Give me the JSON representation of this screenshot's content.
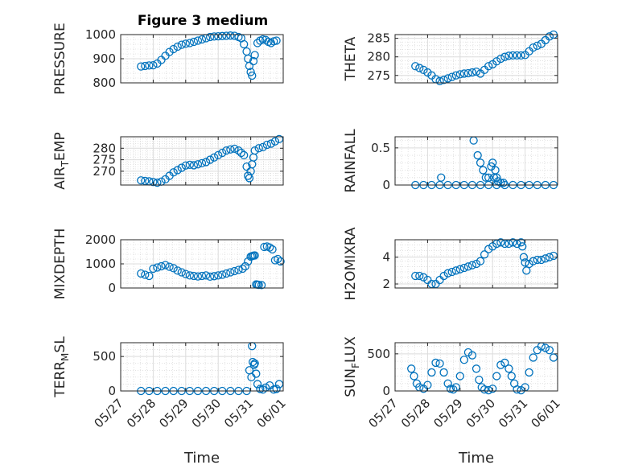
{
  "title": "Figure 3 medium",
  "chart_data": [
    {
      "type": "scatter",
      "ylabel": "PRESSURE",
      "ylim": [
        800,
        1000
      ],
      "yticks": [
        800,
        900,
        1000
      ],
      "xlabel": "",
      "marker_color": "#0072BD",
      "x": [
        "05/27 15:00",
        "05/27 18:00",
        "05/27 21:00",
        "05/28 00:00",
        "05/28 03:00",
        "05/28 06:00",
        "05/28 09:00",
        "05/28 12:00",
        "05/28 15:00",
        "05/28 18:00",
        "05/28 21:00",
        "05/29 00:00",
        "05/29 03:00",
        "05/29 06:00",
        "05/29 09:00",
        "05/29 12:00",
        "05/29 15:00",
        "05/29 18:00",
        "05/29 21:00",
        "05/30 00:00",
        "05/30 03:00",
        "05/30 06:00",
        "05/30 09:00",
        "05/30 12:00",
        "05/30 15:00",
        "05/30 17:00",
        "05/30 19:00",
        "05/30 21:00",
        "05/30 22:00",
        "05/30 23:00",
        "05/31 00:00",
        "05/31 01:00",
        "05/31 02:00",
        "05/31 03:00",
        "05/31 05:00",
        "05/31 07:00",
        "05/31 09:00",
        "05/31 11:00",
        "05/31 13:00",
        "05/31 15:00",
        "05/31 17:00",
        "05/31 19:00"
      ],
      "y": [
        868,
        870,
        872,
        873,
        880,
        895,
        912,
        928,
        940,
        950,
        958,
        962,
        965,
        970,
        975,
        980,
        985,
        990,
        992,
        993,
        994,
        995,
        996,
        995,
        990,
        985,
        960,
        930,
        900,
        870,
        845,
        830,
        890,
        915,
        965,
        975,
        980,
        978,
        970,
        965,
        972,
        975
      ]
    },
    {
      "type": "scatter",
      "ylabel": "THETA",
      "ylim": [
        273,
        286
      ],
      "yticks": [
        275,
        280,
        285
      ],
      "xlabel": "",
      "marker_color": "#0072BD",
      "x": [
        "05/27 15:00",
        "05/27 18:00",
        "05/27 21:00",
        "05/28 00:00",
        "05/28 03:00",
        "05/28 06:00",
        "05/28 09:00",
        "05/28 12:00",
        "05/28 15:00",
        "05/28 18:00",
        "05/28 21:00",
        "05/29 00:00",
        "05/29 03:00",
        "05/29 06:00",
        "05/29 09:00",
        "05/29 12:00",
        "05/29 15:00",
        "05/29 18:00",
        "05/29 21:00",
        "05/30 00:00",
        "05/30 03:00",
        "05/30 06:00",
        "05/30 09:00",
        "05/30 12:00",
        "05/30 15:00",
        "05/30 18:00",
        "05/30 21:00",
        "05/31 00:00",
        "05/31 03:00",
        "05/31 06:00",
        "05/31 09:00",
        "05/31 12:00",
        "05/31 15:00",
        "05/31 18:00",
        "05/31 21:00"
      ],
      "y": [
        277.5,
        277.0,
        276.5,
        275.8,
        275.0,
        274.0,
        273.5,
        273.8,
        274.2,
        274.6,
        275.0,
        275.3,
        275.5,
        275.6,
        275.8,
        276.0,
        275.5,
        276.5,
        277.5,
        278.0,
        278.8,
        279.5,
        280.0,
        280.3,
        280.4,
        280.4,
        280.4,
        280.5,
        281.5,
        282.5,
        283.0,
        283.5,
        284.5,
        285.5,
        286.0
      ]
    },
    {
      "type": "scatter",
      "ylabel": "AIR_TEMP",
      "ylim": [
        264,
        285
      ],
      "yticks": [
        270,
        275,
        280
      ],
      "xlabel": "",
      "marker_color": "#0072BD",
      "x": [
        "05/27 15:00",
        "05/27 18:00",
        "05/27 21:00",
        "05/28 00:00",
        "05/28 03:00",
        "05/28 06:00",
        "05/28 09:00",
        "05/28 12:00",
        "05/28 15:00",
        "05/28 18:00",
        "05/28 21:00",
        "05/29 00:00",
        "05/29 03:00",
        "05/29 06:00",
        "05/29 09:00",
        "05/29 12:00",
        "05/29 15:00",
        "05/29 18:00",
        "05/29 21:00",
        "05/30 00:00",
        "05/30 03:00",
        "05/30 06:00",
        "05/30 09:00",
        "05/30 12:00",
        "05/30 15:00",
        "05/30 17:00",
        "05/30 19:00",
        "05/30 21:00",
        "05/30 22:00",
        "05/30 23:00",
        "05/31 00:00",
        "05/31 01:00",
        "05/31 02:00",
        "05/31 03:00",
        "05/31 06:00",
        "05/31 09:00",
        "05/31 12:00",
        "05/31 15:00",
        "05/31 18:00",
        "05/31 21:00"
      ],
      "y": [
        266.0,
        265.8,
        265.6,
        265.3,
        265.0,
        265.5,
        266.5,
        268.0,
        269.5,
        270.5,
        271.5,
        272.5,
        272.8,
        272.6,
        273.0,
        273.5,
        274.0,
        275.0,
        276.0,
        277.0,
        278.0,
        279.0,
        279.5,
        279.8,
        279.0,
        278.0,
        277.0,
        272.0,
        268.0,
        267.0,
        270.0,
        273.0,
        276.0,
        279.0,
        280.0,
        280.5,
        281.5,
        282.0,
        283.0,
        284.0
      ]
    },
    {
      "type": "scatter",
      "ylabel": "RAINFALL",
      "ylim": [
        0,
        0.65
      ],
      "yticks": [
        0,
        0.5
      ],
      "ytick_labels": [
        "0",
        "0.5"
      ],
      "xlabel": "",
      "marker_color": "#0072BD",
      "x": [
        "05/27 15:00",
        "05/27 21:00",
        "05/28 03:00",
        "05/28 09:00",
        "05/28 15:00",
        "05/28 21:00",
        "05/29 03:00",
        "05/29 09:00",
        "05/29 15:00",
        "05/29 21:00",
        "05/30 03:00",
        "05/30 09:00",
        "05/30 15:00",
        "05/30 21:00",
        "05/31 03:00",
        "05/31 09:00",
        "05/31 15:00",
        "05/31 21:00",
        "05/28 10:00",
        "05/29 10:00",
        "05/29 13:00",
        "05/29 15:00",
        "05/29 17:00",
        "05/29 19:00",
        "05/29 21:00",
        "05/29 23:00",
        "05/30 00:00",
        "05/30 01:00",
        "05/30 02:00",
        "05/30 03:00",
        "05/30 04:00",
        "05/30 06:00",
        "05/30 08:00"
      ],
      "y": [
        0,
        0,
        0,
        0,
        0,
        0,
        0,
        0,
        0,
        0,
        0,
        0,
        0,
        0,
        0,
        0,
        0,
        0,
        0.1,
        0.6,
        0.4,
        0.3,
        0.2,
        0.1,
        0.1,
        0.25,
        0.3,
        0.1,
        0.2,
        0.1,
        0.05,
        0.03,
        0.03
      ]
    },
    {
      "type": "scatter",
      "ylabel": "MIXDEPTH",
      "ylim": [
        0,
        2000
      ],
      "yticks": [
        0,
        1000,
        2000
      ],
      "xlabel": "",
      "marker_color": "#0072BD",
      "x": [
        "05/27 15:00",
        "05/27 18:00",
        "05/27 21:00",
        "05/28 00:00",
        "05/28 03:00",
        "05/28 06:00",
        "05/28 09:00",
        "05/28 12:00",
        "05/28 15:00",
        "05/28 18:00",
        "05/28 21:00",
        "05/29 00:00",
        "05/29 03:00",
        "05/29 06:00",
        "05/29 09:00",
        "05/29 12:00",
        "05/29 15:00",
        "05/29 18:00",
        "05/29 21:00",
        "05/30 00:00",
        "05/30 03:00",
        "05/30 06:00",
        "05/30 09:00",
        "05/30 12:00",
        "05/30 15:00",
        "05/30 18:00",
        "05/30 20:00",
        "05/30 22:00",
        "05/31 00:00",
        "05/31 01:00",
        "05/31 02:00",
        "05/31 03:00",
        "05/31 04:00",
        "05/31 05:00",
        "05/31 06:00",
        "05/31 08:00",
        "05/31 10:00",
        "05/31 12:00",
        "05/31 14:00",
        "05/31 16:00",
        "05/31 18:00",
        "05/31 20:00",
        "05/31 22:00"
      ],
      "y": [
        600,
        550,
        500,
        800,
        850,
        900,
        950,
        880,
        820,
        720,
        650,
        580,
        520,
        500,
        480,
        500,
        520,
        470,
        490,
        520,
        550,
        600,
        650,
        700,
        750,
        800,
        900,
        1100,
        1300,
        1320,
        1340,
        1350,
        150,
        140,
        130,
        120,
        1700,
        1720,
        1680,
        1600,
        1150,
        1200,
        1100
      ]
    },
    {
      "type": "scatter",
      "ylabel": "H2OMIXRA",
      "ylim": [
        1.7,
        5.3
      ],
      "yticks": [
        2,
        4
      ],
      "xlabel": "",
      "marker_color": "#0072BD",
      "x": [
        "05/27 15:00",
        "05/27 18:00",
        "05/27 21:00",
        "05/28 00:00",
        "05/28 03:00",
        "05/28 06:00",
        "05/28 09:00",
        "05/28 12:00",
        "05/28 15:00",
        "05/28 18:00",
        "05/28 21:00",
        "05/29 00:00",
        "05/29 03:00",
        "05/29 06:00",
        "05/29 09:00",
        "05/29 12:00",
        "05/29 15:00",
        "05/29 18:00",
        "05/29 21:00",
        "05/30 00:00",
        "05/30 03:00",
        "05/30 06:00",
        "05/30 09:00",
        "05/30 12:00",
        "05/30 15:00",
        "05/30 18:00",
        "05/30 21:00",
        "05/30 22:00",
        "05/30 23:00",
        "05/31 00:00",
        "05/31 01:00",
        "05/31 03:00",
        "05/31 06:00",
        "05/31 09:00",
        "05/31 12:00",
        "05/31 15:00",
        "05/31 18:00",
        "05/31 21:00"
      ],
      "y": [
        2.6,
        2.6,
        2.5,
        2.3,
        2.0,
        2.0,
        2.3,
        2.6,
        2.8,
        2.9,
        3.0,
        3.1,
        3.2,
        3.3,
        3.4,
        3.5,
        3.7,
        4.2,
        4.6,
        4.8,
        5.0,
        5.1,
        5.0,
        5.0,
        5.1,
        5.0,
        5.1,
        4.8,
        4.0,
        3.6,
        3.0,
        3.5,
        3.7,
        3.8,
        3.8,
        3.9,
        4.0,
        4.1
      ]
    },
    {
      "type": "scatter",
      "ylabel": "TERR_MSL",
      "ylim": [
        0,
        700
      ],
      "yticks": [
        0,
        500
      ],
      "xlabel": "Time",
      "marker_color": "#0072BD",
      "x": [
        "05/27 15:00",
        "05/27 21:00",
        "05/28 03:00",
        "05/28 09:00",
        "05/28 15:00",
        "05/28 21:00",
        "05/29 03:00",
        "05/29 09:00",
        "05/29 15:00",
        "05/29 21:00",
        "05/30 03:00",
        "05/30 09:00",
        "05/30 15:00",
        "05/30 21:00",
        "05/30 23:00",
        "05/31 01:00",
        "05/31 03:00",
        "05/31 05:00",
        "05/31 07:00",
        "05/31 09:00",
        "05/31 11:00",
        "05/31 14:00",
        "05/31 17:00",
        "05/31 19:00",
        "05/31 21:00",
        "05/31 01:30",
        "05/31 02:30",
        "05/31 00:30",
        "05/31 04:00"
      ],
      "y": [
        0,
        0,
        0,
        0,
        0,
        0,
        0,
        0,
        0,
        0,
        0,
        0,
        0,
        0,
        300,
        650,
        400,
        100,
        30,
        20,
        50,
        80,
        20,
        30,
        100,
        420,
        380,
        200,
        250
      ]
    },
    {
      "type": "scatter",
      "ylabel": "SUN_FLUX",
      "ylim": [
        0,
        650
      ],
      "yticks": [
        0,
        500
      ],
      "xlabel": "Time",
      "marker_color": "#0072BD",
      "x": [
        "05/27 12:00",
        "05/27 14:00",
        "05/27 16:00",
        "05/27 18:00",
        "05/27 21:00",
        "05/28 00:00",
        "05/28 03:00",
        "05/28 06:00",
        "05/28 09:00",
        "05/28 12:00",
        "05/28 15:00",
        "05/28 17:00",
        "05/28 19:00",
        "05/28 21:00",
        "05/29 00:00",
        "05/29 03:00",
        "05/29 06:00",
        "05/29 09:00",
        "05/29 12:00",
        "05/29 14:00",
        "05/29 16:00",
        "05/29 18:00",
        "05/29 21:00",
        "05/30 00:00",
        "05/30 03:00",
        "05/30 06:00",
        "05/30 09:00",
        "05/30 12:00",
        "05/30 14:00",
        "05/30 16:00",
        "05/30 18:00",
        "05/30 21:00",
        "05/31 00:00",
        "05/31 03:00",
        "05/31 06:00",
        "05/31 09:00",
        "05/31 12:00",
        "05/31 15:00",
        "05/31 18:00",
        "05/31 21:00"
      ],
      "y": [
        300,
        200,
        100,
        50,
        30,
        80,
        250,
        380,
        370,
        250,
        100,
        30,
        20,
        50,
        200,
        420,
        520,
        480,
        300,
        150,
        50,
        20,
        10,
        30,
        200,
        350,
        380,
        300,
        200,
        100,
        20,
        10,
        50,
        250,
        450,
        550,
        600,
        580,
        550,
        450
      ]
    }
  ],
  "x_axis": {
    "ticks": [
      "05/27",
      "05/28",
      "05/29",
      "05/30",
      "05/31",
      "06/01"
    ],
    "xlim": [
      "05/27",
      "06/01"
    ]
  }
}
